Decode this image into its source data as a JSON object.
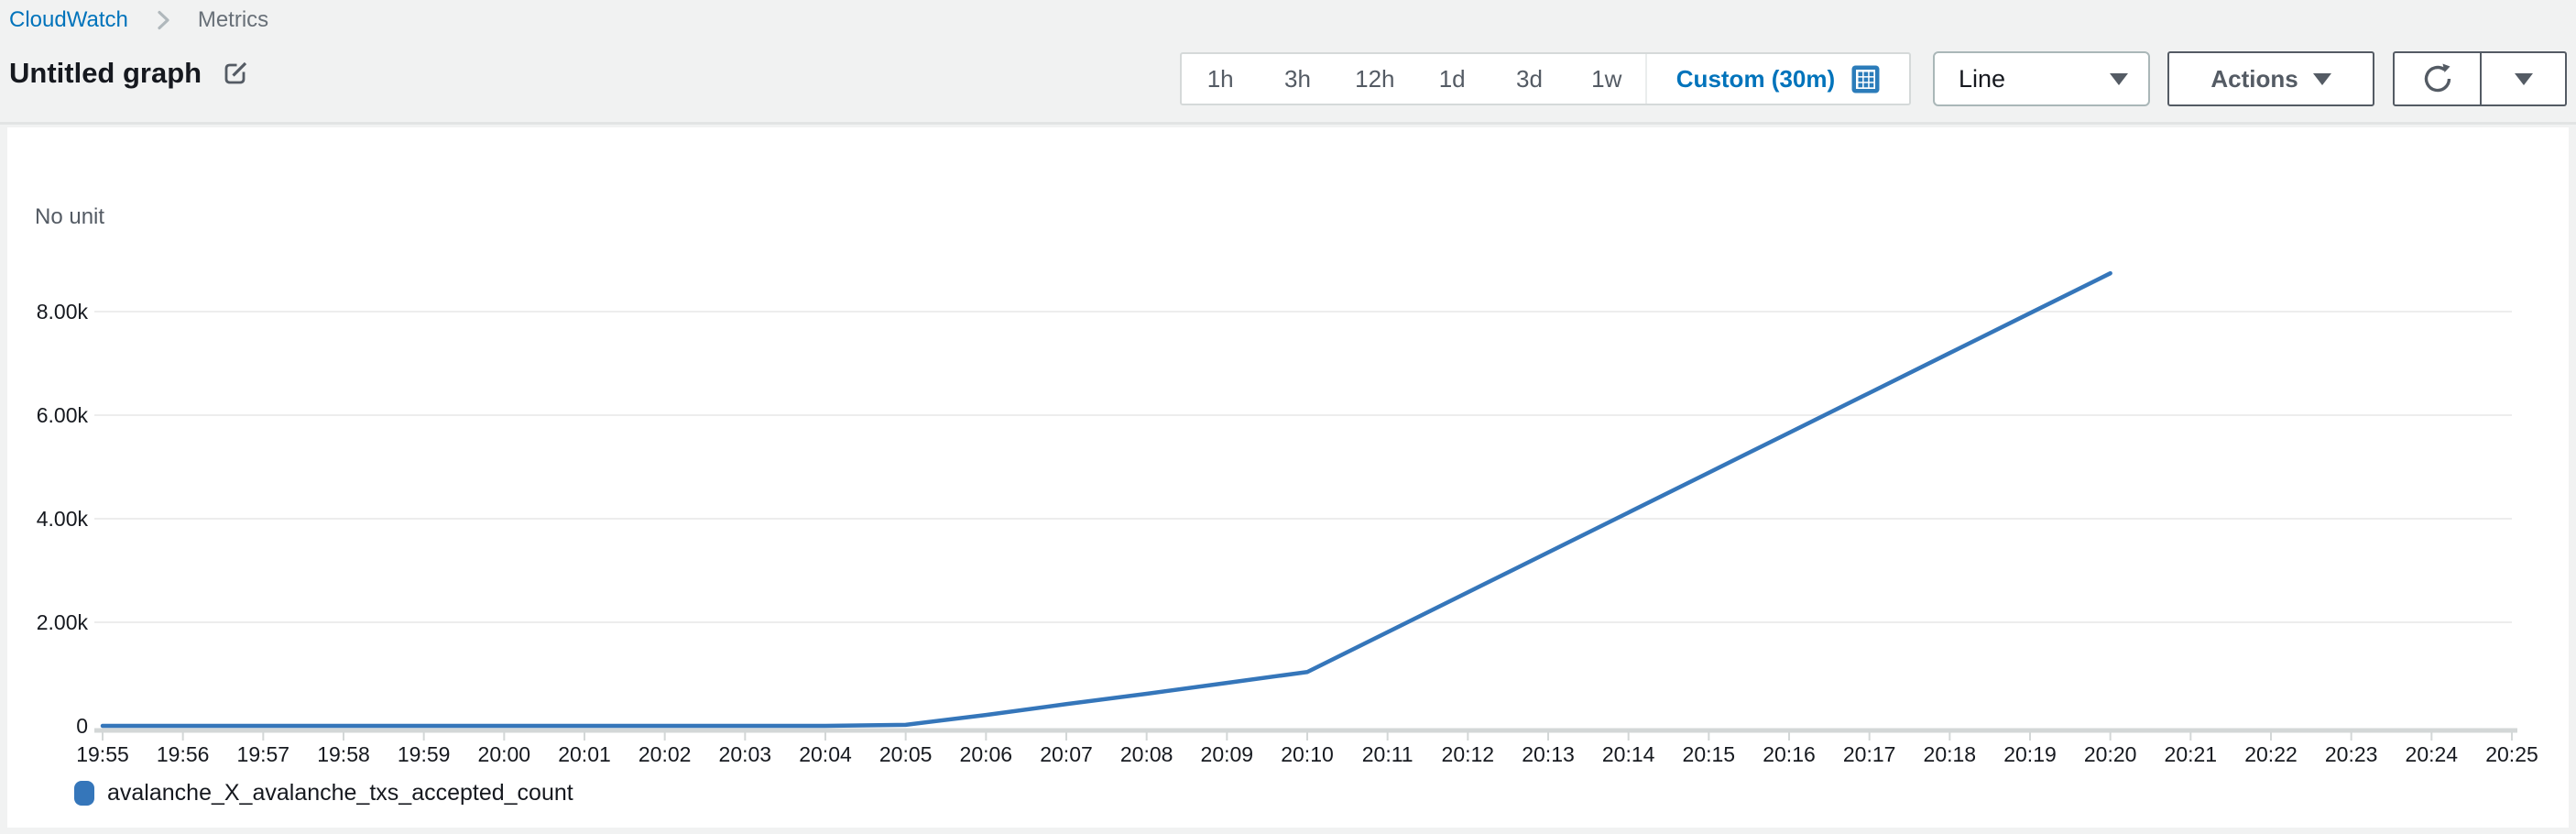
{
  "breadcrumb": {
    "items": [
      {
        "label": "CloudWatch"
      },
      {
        "label": "Metrics"
      }
    ]
  },
  "page": {
    "title": "Untitled graph"
  },
  "toolbar": {
    "ranges": [
      "1h",
      "3h",
      "12h",
      "1d",
      "3d",
      "1w"
    ],
    "custom_label": "Custom (30m)",
    "chart_type": "Line",
    "actions_label": "Actions"
  },
  "colors": {
    "accent_blue": "#0073bb",
    "line_blue": "#3576ba",
    "muted_text": "#545b64",
    "dark_text": "#16191f",
    "grid": "#ededed",
    "axis": "#d3d7d7"
  },
  "chart_data": {
    "type": "line",
    "title": "Untitled graph",
    "unit_label": "No unit",
    "grid": true,
    "legend_position": "bottom",
    "ylim": [
      0,
      9000
    ],
    "x": [
      "19:55",
      "19:56",
      "19:57",
      "19:58",
      "19:59",
      "20:00",
      "20:01",
      "20:02",
      "20:03",
      "20:04",
      "20:05",
      "20:06",
      "20:07",
      "20:08",
      "20:09",
      "20:10",
      "20:11",
      "20:12",
      "20:13",
      "20:14",
      "20:15",
      "20:16",
      "20:17",
      "20:18",
      "20:19",
      "20:20",
      "20:21",
      "20:22",
      "20:23",
      "20:24",
      "20:25"
    ],
    "yticks": [
      {
        "label": "0",
        "value": 0
      },
      {
        "label": "2.00k",
        "value": 2000
      },
      {
        "label": "4.00k",
        "value": 4000
      },
      {
        "label": "6.00k",
        "value": 6000
      },
      {
        "label": "8.00k",
        "value": 8000
      }
    ],
    "series": [
      {
        "name": "avalanche_X_avalanche_txs_accepted_count",
        "color": "#3576ba",
        "values": [
          0,
          0,
          0,
          0,
          0,
          0,
          0,
          0,
          0,
          0,
          20,
          210,
          420,
          620,
          830,
          1040,
          1810,
          2580,
          3350,
          4120,
          4890,
          5660,
          6430,
          7200,
          7970,
          8740,
          null,
          null,
          null,
          null,
          null
        ]
      }
    ]
  }
}
